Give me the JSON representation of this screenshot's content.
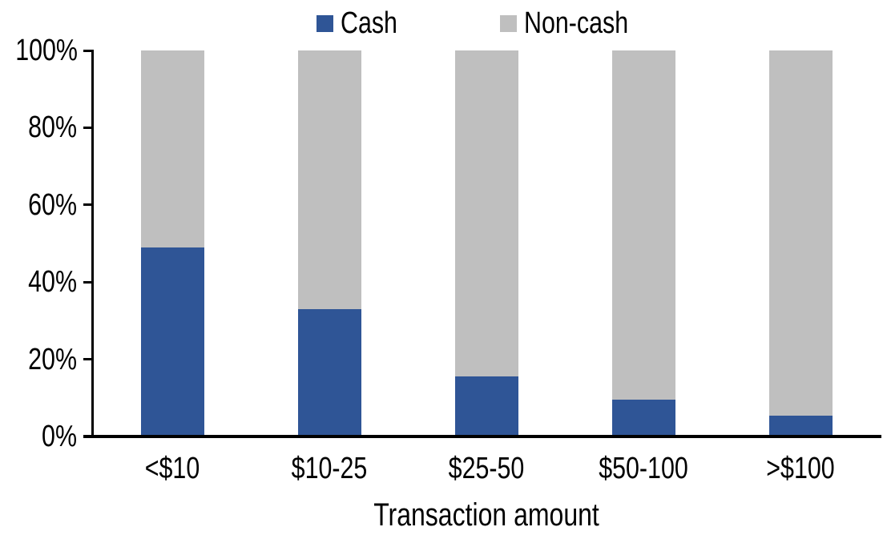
{
  "chart_data": {
    "type": "bar",
    "subtype": "stacked-100",
    "categories": [
      "<$10",
      "$10-25",
      "$25-50",
      "$50-100",
      ">$100"
    ],
    "series": [
      {
        "name": "Cash",
        "color": "#2F5596",
        "values": [
          49,
          33,
          15.5,
          9.5,
          5.5
        ]
      },
      {
        "name": "Non-cash",
        "color": "#BFBFBF",
        "values": [
          51,
          67,
          84.5,
          90.5,
          94.5
        ]
      }
    ],
    "title": "",
    "xlabel": "Transaction amount",
    "ylabel": "",
    "ylim": [
      0,
      100
    ],
    "y_ticks": [
      "0%",
      "20%",
      "40%",
      "60%",
      "80%",
      "100%"
    ],
    "grid": false,
    "legend_position": "top-center"
  },
  "colors": {
    "axis": "#000000",
    "text": "#000000",
    "background": "#FFFFFF",
    "cash": "#2F5596",
    "non_cash": "#BFBFBF"
  }
}
